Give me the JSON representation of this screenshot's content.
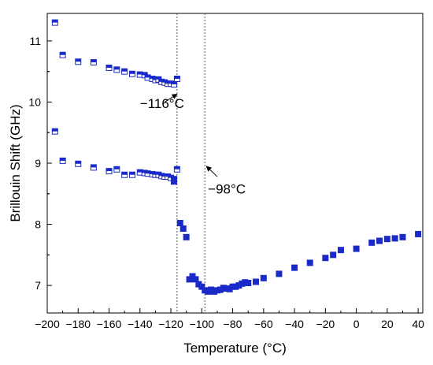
{
  "chart_data": {
    "type": "scatter",
    "xlabel": "Temperature (°C)",
    "ylabel": "Brillouin Shift (GHz)",
    "xlim": [
      -200,
      43
    ],
    "ylim": [
      6.55,
      11.45
    ],
    "x_ticks": [
      -200,
      -180,
      -160,
      -140,
      -120,
      -100,
      -80,
      -60,
      -40,
      -20,
      0,
      20,
      40
    ],
    "x_tick_labels": [
      "−200",
      "−180",
      "−160",
      "−140",
      "−120",
      "−100",
      "−80",
      "−60",
      "−40",
      "−20",
      "0",
      "20",
      "40"
    ],
    "y_ticks": [
      7,
      8,
      9,
      10,
      11
    ],
    "y_tick_labels": [
      "7",
      "8",
      "9",
      "10",
      "11"
    ],
    "grid": false,
    "marker_color": "#1a2ac8",
    "series": [
      {
        "marker": "half-filled-square",
        "values": [
          [
            -195,
            11.3
          ],
          [
            -190,
            10.77
          ],
          [
            -180,
            10.66
          ],
          [
            -170,
            10.65
          ],
          [
            -160,
            10.56
          ],
          [
            -155,
            10.53
          ],
          [
            -150,
            10.5
          ],
          [
            -145,
            10.46
          ],
          [
            -140,
            10.45
          ],
          [
            -137,
            10.44
          ],
          [
            -135,
            10.4
          ],
          [
            -132,
            10.38
          ],
          [
            -130,
            10.36
          ],
          [
            -128,
            10.37
          ],
          [
            -126,
            10.33
          ],
          [
            -124,
            10.32
          ],
          [
            -122,
            10.3
          ],
          [
            -120,
            10.3
          ],
          [
            -118,
            10.29
          ],
          [
            -116,
            10.38
          ],
          [
            -195,
            9.52
          ],
          [
            -190,
            9.04
          ],
          [
            -180,
            8.99
          ],
          [
            -170,
            8.93
          ],
          [
            -160,
            8.87
          ],
          [
            -155,
            8.9
          ],
          [
            -150,
            8.81
          ],
          [
            -145,
            8.81
          ],
          [
            -140,
            8.85
          ],
          [
            -137,
            8.84
          ],
          [
            -135,
            8.83
          ],
          [
            -132,
            8.82
          ],
          [
            -130,
            8.81
          ],
          [
            -128,
            8.81
          ],
          [
            -126,
            8.79
          ],
          [
            -124,
            8.78
          ],
          [
            -122,
            8.78
          ],
          [
            -120,
            8.76
          ],
          [
            -118,
            8.74
          ],
          [
            -116,
            8.9
          ]
        ]
      },
      {
        "marker": "filled-square",
        "values": [
          [
            -118,
            8.7
          ],
          [
            -114,
            8.02
          ],
          [
            -112,
            7.93
          ],
          [
            -110,
            7.79
          ],
          [
            -108,
            7.1
          ],
          [
            -106,
            7.15
          ],
          [
            -104,
            7.1
          ],
          [
            -102,
            7.02
          ],
          [
            -100,
            6.98
          ],
          [
            -98,
            6.92
          ],
          [
            -96,
            6.9
          ],
          [
            -94,
            6.93
          ],
          [
            -92,
            6.9
          ],
          [
            -90,
            6.92
          ],
          [
            -88,
            6.93
          ],
          [
            -86,
            6.96
          ],
          [
            -84,
            6.95
          ],
          [
            -82,
            6.94
          ],
          [
            -80,
            6.98
          ],
          [
            -78,
            6.98
          ],
          [
            -76,
            7.0
          ],
          [
            -74,
            7.03
          ],
          [
            -72,
            7.05
          ],
          [
            -70,
            7.04
          ],
          [
            -65,
            7.06
          ],
          [
            -60,
            7.12
          ],
          [
            -50,
            7.19
          ],
          [
            -40,
            7.29
          ],
          [
            -30,
            7.37
          ],
          [
            -20,
            7.45
          ],
          [
            -15,
            7.5
          ],
          [
            -10,
            7.58
          ],
          [
            0,
            7.6
          ],
          [
            10,
            7.7
          ],
          [
            15,
            7.73
          ],
          [
            20,
            7.76
          ],
          [
            25,
            7.77
          ],
          [
            30,
            7.79
          ],
          [
            40,
            7.84
          ]
        ]
      }
    ],
    "vlines": [
      -116,
      -98
    ],
    "annotations": [
      {
        "text": "−116°C",
        "x": -140,
        "y": 9.98,
        "arrow_to": [
          -116,
          10.13
        ],
        "arrow_from": [
          -124,
          10.0
        ]
      },
      {
        "text": "−98°C",
        "x": -96,
        "y": 8.58,
        "arrow_to": [
          -97,
          8.95
        ],
        "arrow_from": [
          -90,
          8.78
        ]
      }
    ]
  }
}
